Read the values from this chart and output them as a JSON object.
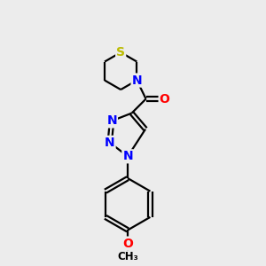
{
  "background_color": "#ececec",
  "atom_colors": {
    "C": "#000000",
    "N": "#0000ff",
    "O": "#ff0000",
    "S": "#bbbb00"
  },
  "bond_color": "#000000",
  "bond_width": 1.6,
  "font_size": 10,
  "fig_size": [
    3.0,
    3.0
  ],
  "dpi": 100
}
